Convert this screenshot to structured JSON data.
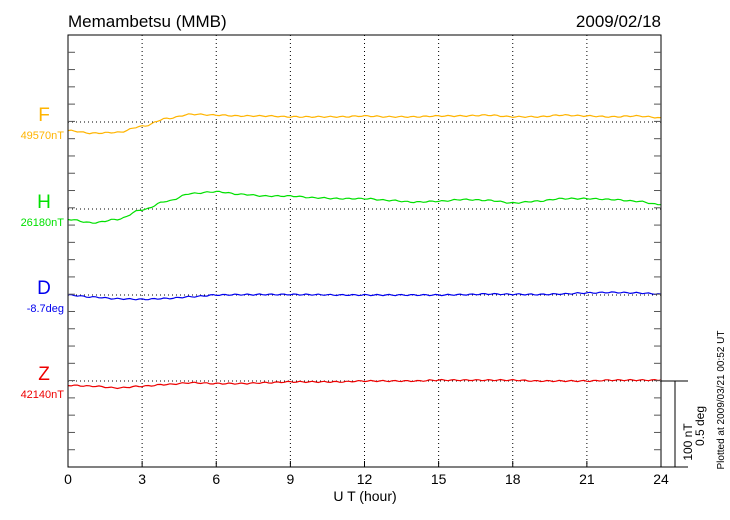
{
  "chart_data": {
    "type": "line",
    "title": "Memambetsu (MMB)",
    "date": "2009/02/18",
    "xlabel": "U T (hour)",
    "xlim": [
      0,
      24
    ],
    "xticks": [
      "0",
      "3",
      "6",
      "9",
      "12",
      "15",
      "18",
      "21",
      "24"
    ],
    "grid": "vertical dotted every 3 hours",
    "scale_bar": {
      "nT": "100 nT",
      "deg": "0.5 deg"
    },
    "footer": "Plotted at 2009/03/21 00:52 UT",
    "x": [
      0,
      1,
      2,
      3,
      4,
      5,
      6,
      7,
      8,
      9,
      10,
      11,
      12,
      13,
      14,
      15,
      16,
      17,
      18,
      19,
      20,
      21,
      22,
      23,
      24
    ],
    "series": [
      {
        "name": "F",
        "baseline_label": "49570nT",
        "unit": "nT",
        "color": "#ffb400",
        "values": [
          -10,
          -13,
          -12,
          -5,
          4,
          9,
          8,
          7,
          7,
          6,
          6,
          6,
          7,
          6,
          6,
          7,
          7,
          8,
          6,
          6,
          8,
          7,
          6,
          7,
          5
        ]
      },
      {
        "name": "H",
        "baseline_label": "26180nT",
        "unit": "nT",
        "color": "#00e000",
        "values": [
          -12,
          -16,
          -12,
          -1,
          9,
          18,
          20,
          17,
          15,
          15,
          13,
          12,
          12,
          10,
          8,
          9,
          11,
          10,
          7,
          9,
          12,
          12,
          11,
          9,
          5
        ]
      },
      {
        "name": "D",
        "baseline_label": "-8.7deg",
        "unit": "deg",
        "color": "#0000ee",
        "values": [
          0,
          -0.012,
          -0.022,
          -0.025,
          -0.02,
          -0.01,
          0,
          0.002,
          0.003,
          0.003,
          0.002,
          0,
          0,
          0,
          0,
          0,
          0.002,
          0.006,
          0.004,
          0.003,
          0.006,
          0.012,
          0.015,
          0.012,
          0.006
        ]
      },
      {
        "name": "Z",
        "baseline_label": "42140nT",
        "unit": "nT",
        "color": "#ee0000",
        "values": [
          -5,
          -6,
          -8,
          -6,
          -4,
          -2,
          -3,
          -3,
          -2,
          -1,
          -1,
          -1,
          0,
          0,
          0,
          1,
          1,
          1,
          1,
          0,
          0,
          0,
          1,
          1,
          1
        ]
      }
    ],
    "scale": {
      "nT_per_tick": 20,
      "deg_per_tick": 0.1
    }
  }
}
